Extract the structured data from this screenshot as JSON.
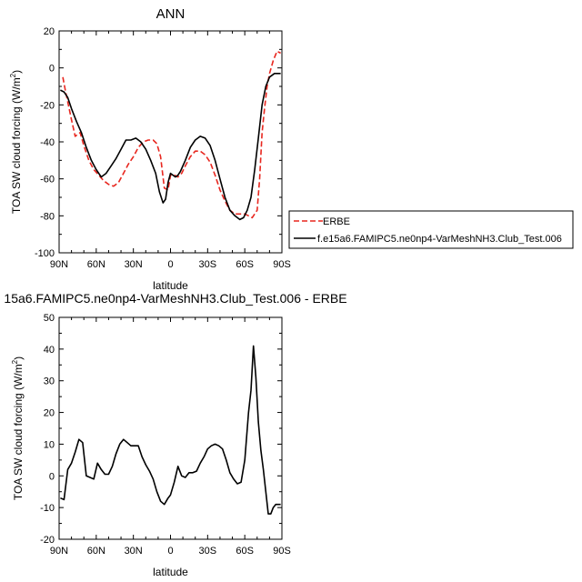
{
  "chart_data": [
    {
      "type": "line",
      "title": "ANN",
      "xlabel": "latitude",
      "ylabel": "TOA SW cloud forcing (W/m",
      "ylabel_sup": "2",
      "ylabel_close": ")",
      "xlim": [
        90,
        -90
      ],
      "ylim": [
        -100,
        20
      ],
      "x_ticks": [
        90,
        60,
        30,
        0,
        -30,
        -60,
        -90
      ],
      "x_tick_labels": [
        "90N",
        "60N",
        "30N",
        "0",
        "30S",
        "60S",
        "90S"
      ],
      "y_ticks": [
        20,
        0,
        -20,
        -40,
        -60,
        -80,
        -100
      ],
      "y_tick_labels": [
        "20",
        "0",
        "-20",
        "-40",
        "-60",
        "-80",
        "-100"
      ],
      "grid": false,
      "legend_position": "right",
      "series": [
        {
          "name": "ERBE",
          "color": "#e8271f",
          "dash": "dashed",
          "x": [
            87,
            85,
            80,
            77,
            73,
            70,
            66,
            62,
            58,
            54,
            50,
            46,
            42,
            38,
            34,
            30,
            26,
            22,
            18,
            14,
            11,
            8,
            5,
            2,
            0,
            -3,
            -6,
            -9,
            -12,
            -16,
            -20,
            -24,
            -28,
            -32,
            -36,
            -40,
            -44,
            -48,
            -52,
            -56,
            -60,
            -63,
            -66,
            -68,
            -70,
            -72,
            -74,
            -76,
            -78,
            -80,
            -83,
            -86,
            -89
          ],
          "y": [
            -5,
            -12,
            -28,
            -37,
            -35,
            -42,
            -50,
            -55,
            -58,
            -61,
            -63,
            -64,
            -62,
            -57,
            -52,
            -48,
            -43,
            -40,
            -39,
            -39,
            -41,
            -48,
            -65,
            -66,
            -58,
            -58,
            -59,
            -57,
            -53,
            -48,
            -45,
            -45,
            -47,
            -51,
            -58,
            -66,
            -72,
            -77,
            -79,
            -79,
            -79,
            -80,
            -81,
            -79,
            -77,
            -60,
            -35,
            -22,
            -10,
            -3,
            4,
            9,
            8
          ]
        },
        {
          "name": "f.e15a6.FAMIPC5.ne0np4-VarMeshNH3.Club_Test.006",
          "color": "#000000",
          "dash": "solid",
          "x": [
            89,
            86,
            83,
            80,
            76,
            72,
            68,
            64,
            60,
            56,
            52,
            48,
            44,
            40,
            36,
            32,
            28,
            24,
            20,
            16,
            12,
            9,
            6,
            4,
            2,
            0,
            -2,
            -4,
            -6,
            -8,
            -12,
            -16,
            -20,
            -24,
            -28,
            -32,
            -36,
            -40,
            -44,
            -48,
            -52,
            -56,
            -59,
            -62,
            -65,
            -68,
            -71,
            -74,
            -77,
            -80,
            -84,
            -87,
            -89
          ],
          "y": [
            -12,
            -13,
            -16,
            -22,
            -29,
            -35,
            -43,
            -50,
            -55,
            -59,
            -57,
            -53,
            -49,
            -44,
            -39,
            -39,
            -38,
            -40,
            -44,
            -50,
            -57,
            -67,
            -73,
            -71,
            -62,
            -57,
            -58,
            -59,
            -58,
            -56,
            -50,
            -43,
            -39,
            -37,
            -38,
            -42,
            -50,
            -60,
            -70,
            -77,
            -80,
            -82,
            -81,
            -77,
            -70,
            -55,
            -38,
            -20,
            -10,
            -5,
            -3,
            -3,
            -3
          ]
        }
      ]
    },
    {
      "type": "line",
      "title": "15a6.FAMIPC5.ne0np4-VarMeshNH3.Club_Test.006 - ERBE",
      "xlabel": "latitude",
      "ylabel": "TOA SW cloud forcing (W/m",
      "ylabel_sup": "2",
      "ylabel_close": ")",
      "xlim": [
        90,
        -90
      ],
      "ylim": [
        -20,
        50
      ],
      "x_ticks": [
        90,
        60,
        30,
        0,
        -30,
        -60,
        -90
      ],
      "x_tick_labels": [
        "90N",
        "60N",
        "30N",
        "0",
        "30S",
        "60S",
        "90S"
      ],
      "y_ticks": [
        50,
        40,
        30,
        20,
        10,
        0,
        -10,
        -20
      ],
      "y_tick_labels": [
        "50",
        "40",
        "30",
        "20",
        "10",
        "0",
        "-10",
        "-20"
      ],
      "grid": false,
      "series": [
        {
          "color": "#000000",
          "dash": "solid",
          "x": [
            89,
            86,
            83,
            80,
            77,
            74,
            71,
            68,
            65,
            62,
            59,
            56,
            53,
            50,
            47,
            44,
            41,
            38,
            35,
            32,
            29,
            26,
            23,
            20,
            17,
            14,
            11,
            8,
            5,
            2,
            0,
            -3,
            -6,
            -9,
            -12,
            -15,
            -18,
            -21,
            -24,
            -27,
            -30,
            -33,
            -36,
            -39,
            -42,
            -45,
            -48,
            -51,
            -54,
            -57,
            -60,
            -63,
            -65,
            -67,
            -69,
            -71,
            -73,
            -75,
            -77,
            -79,
            -81,
            -83,
            -85,
            -87,
            -89
          ],
          "y": [
            -7,
            -7.5,
            2,
            4,
            7.5,
            11.5,
            10.5,
            0,
            -0.5,
            -1,
            4,
            2,
            0.5,
            0.5,
            3,
            7,
            10,
            11.5,
            10.5,
            9.5,
            9.5,
            9.5,
            6,
            3.5,
            1.5,
            -1,
            -5,
            -8,
            -9,
            -7,
            -6,
            -2,
            3,
            0,
            -0.5,
            1,
            1,
            1.5,
            4,
            6,
            8.5,
            9.5,
            10,
            9.5,
            8.5,
            5,
            1,
            -1,
            -2.5,
            -2,
            5,
            20,
            27,
            41,
            31,
            17,
            8,
            2,
            -5,
            -12,
            -12,
            -10,
            -9,
            -9,
            -9
          ]
        }
      ]
    }
  ]
}
